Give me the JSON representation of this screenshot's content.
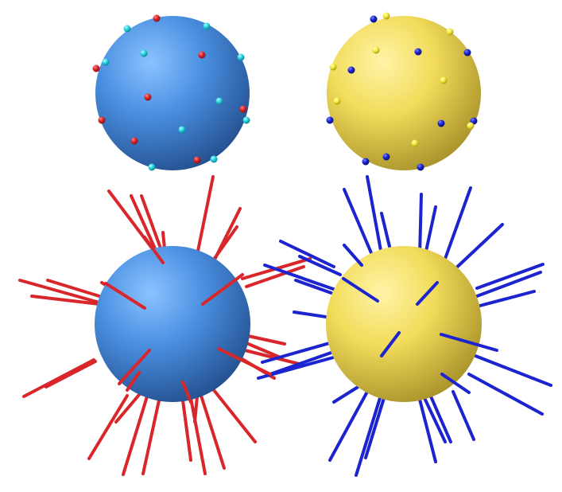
{
  "colors": {
    "background": "#ffffff",
    "blue_sphere_light": "#8cc3ff",
    "blue_sphere_mid": "#4a90e2",
    "blue_sphere_dark": "#24508f",
    "yellow_sphere_light": "#fff4a8",
    "yellow_sphere_mid": "#f2dc5a",
    "yellow_sphere_dark": "#a9922a",
    "red": "#d9262b",
    "red_light": "#ff8a8a",
    "red_dark": "#8f1114",
    "cyan": "#29d4e0",
    "cyan_light": "#b8fbff",
    "cyan_dark": "#0b8793",
    "blue": "#1c24cf",
    "blue_light": "#7a86ff",
    "blue_dark": "#0a0e7a",
    "yellow_dot": "#f5ea3c",
    "yellow_dot_light": "#ffffc2",
    "yellow_dot_dark": "#a99e10"
  },
  "panels": [
    {
      "name": "blue-sphere-dotted",
      "sphere": "blue",
      "dots": [
        "red",
        "cyan"
      ]
    },
    {
      "name": "yellow-sphere-dotted",
      "sphere": "yellow",
      "dots": [
        "blue",
        "yellow"
      ]
    },
    {
      "name": "blue-sphere-spiked",
      "sphere": "blue",
      "spikes": "red"
    },
    {
      "name": "yellow-sphere-spiked",
      "sphere": "yellow",
      "spikes": "blue"
    }
  ]
}
